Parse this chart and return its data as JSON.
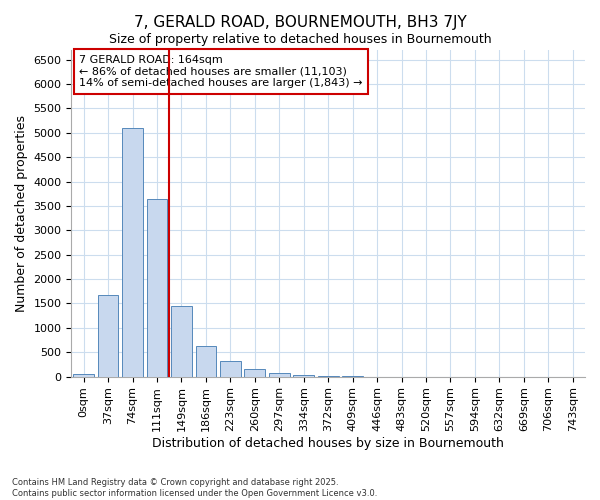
{
  "title": "7, GERALD ROAD, BOURNEMOUTH, BH3 7JY",
  "subtitle": "Size of property relative to detached houses in Bournemouth",
  "xlabel": "Distribution of detached houses by size in Bournemouth",
  "ylabel": "Number of detached properties",
  "categories": [
    "0sqm",
    "37sqm",
    "74sqm",
    "111sqm",
    "149sqm",
    "186sqm",
    "223sqm",
    "260sqm",
    "297sqm",
    "334sqm",
    "372sqm",
    "409sqm",
    "446sqm",
    "483sqm",
    "520sqm",
    "557sqm",
    "594sqm",
    "632sqm",
    "669sqm",
    "706sqm",
    "743sqm"
  ],
  "values": [
    50,
    1670,
    5100,
    3650,
    1450,
    620,
    320,
    150,
    80,
    40,
    10,
    5,
    0,
    0,
    0,
    0,
    0,
    0,
    0,
    0,
    0
  ],
  "bar_color": "#c8d8ee",
  "bar_edge_color": "#5588bb",
  "vline_x": 4.0,
  "vline_color": "#cc0000",
  "annotation_title": "7 GERALD ROAD: 164sqm",
  "annotation_line1": "← 86% of detached houses are smaller (11,103)",
  "annotation_line2": "14% of semi-detached houses are larger (1,843) →",
  "annotation_box_color": "#cc0000",
  "ylim": [
    0,
    6700
  ],
  "yticks": [
    0,
    500,
    1000,
    1500,
    2000,
    2500,
    3000,
    3500,
    4000,
    4500,
    5000,
    5500,
    6000,
    6500
  ],
  "footer_line1": "Contains HM Land Registry data © Crown copyright and database right 2025.",
  "footer_line2": "Contains public sector information licensed under the Open Government Licence v3.0.",
  "bg_color": "#ffffff",
  "grid_color": "#ccddee",
  "title_fontsize": 11,
  "subtitle_fontsize": 9,
  "axis_label_fontsize": 9,
  "tick_fontsize": 8,
  "annotation_fontsize": 8
}
